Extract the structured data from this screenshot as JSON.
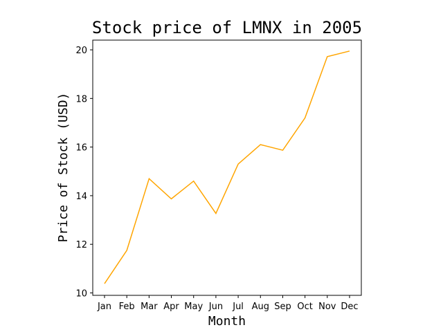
{
  "chart_data": {
    "type": "line",
    "title": "Stock price of LMNX in 2005",
    "xlabel": "Month",
    "ylabel": "Price of Stock (USD)",
    "categories": [
      "Jan",
      "Feb",
      "Mar",
      "Apr",
      "May",
      "Jun",
      "Jul",
      "Aug",
      "Sep",
      "Oct",
      "Nov",
      "Dec"
    ],
    "series": [
      {
        "values": [
          10.38,
          11.75,
          14.7,
          13.87,
          14.6,
          13.27,
          15.3,
          16.1,
          15.87,
          17.2,
          19.72,
          19.95
        ]
      }
    ],
    "yticks": [
      10,
      12,
      14,
      16,
      18,
      20
    ],
    "ylim": [
      9.9,
      20.4
    ],
    "grid": false,
    "line_color": "#ffa500"
  }
}
